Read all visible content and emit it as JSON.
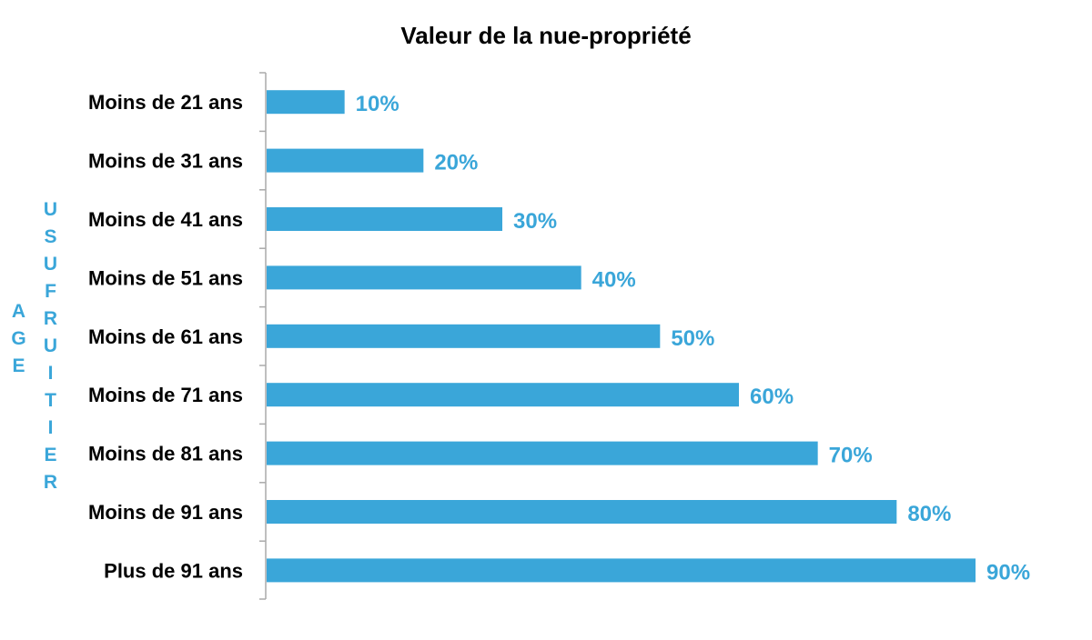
{
  "chart_data": {
    "type": "bar",
    "orientation": "horizontal",
    "title": "Valeur de la nue-propriété",
    "ylabel_parts": [
      "AGE",
      "USUFRUITIER"
    ],
    "xlabel": "",
    "categories": [
      "Moins de 21 ans",
      "Moins de 31 ans",
      "Moins de 41 ans",
      "Moins de 51 ans",
      "Moins de 61 ans",
      "Moins de 71 ans",
      "Moins de 81 ans",
      "Moins de 91 ans",
      "Plus de 91 ans"
    ],
    "values": [
      10,
      20,
      30,
      40,
      50,
      60,
      70,
      80,
      90
    ],
    "value_labels": [
      "10%",
      "20%",
      "30%",
      "40%",
      "50%",
      "60%",
      "70%",
      "80%",
      "90%"
    ],
    "xlim": [
      0,
      90
    ],
    "grid": false,
    "bar_color": "#3aa6d9"
  }
}
